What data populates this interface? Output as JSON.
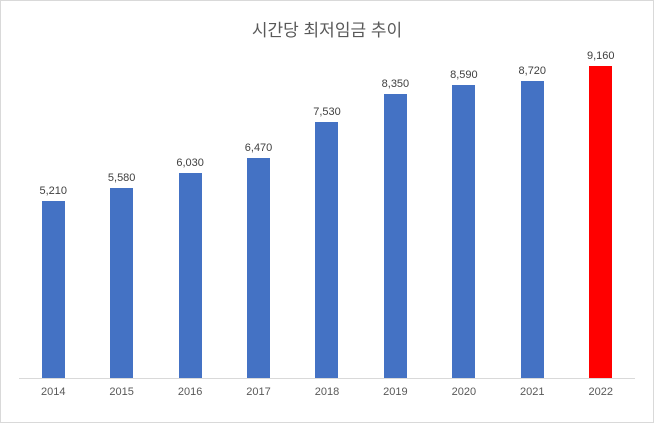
{
  "chart_data": {
    "type": "bar",
    "title": "시간당 최저임금 추이",
    "categories": [
      "2014",
      "2015",
      "2016",
      "2017",
      "2018",
      "2019",
      "2020",
      "2021",
      "2022"
    ],
    "values": [
      5210,
      5580,
      6030,
      6470,
      7530,
      8350,
      8590,
      8720,
      9160
    ],
    "labels": [
      "5,210",
      "5,580",
      "6,030",
      "6,470",
      "7,530",
      "8,350",
      "8,590",
      "8,720",
      "9,160"
    ],
    "xlabel": "",
    "ylabel": "",
    "ylim": [
      0,
      9160
    ],
    "grid": false,
    "legend": false,
    "bar_color": "#4472c4",
    "highlight_index": 8,
    "highlight_color": "#ff0000",
    "axis_line_color": "#d9d9d9",
    "title_color": "#595959",
    "label_color": "#404040",
    "tick_color": "#595959"
  }
}
